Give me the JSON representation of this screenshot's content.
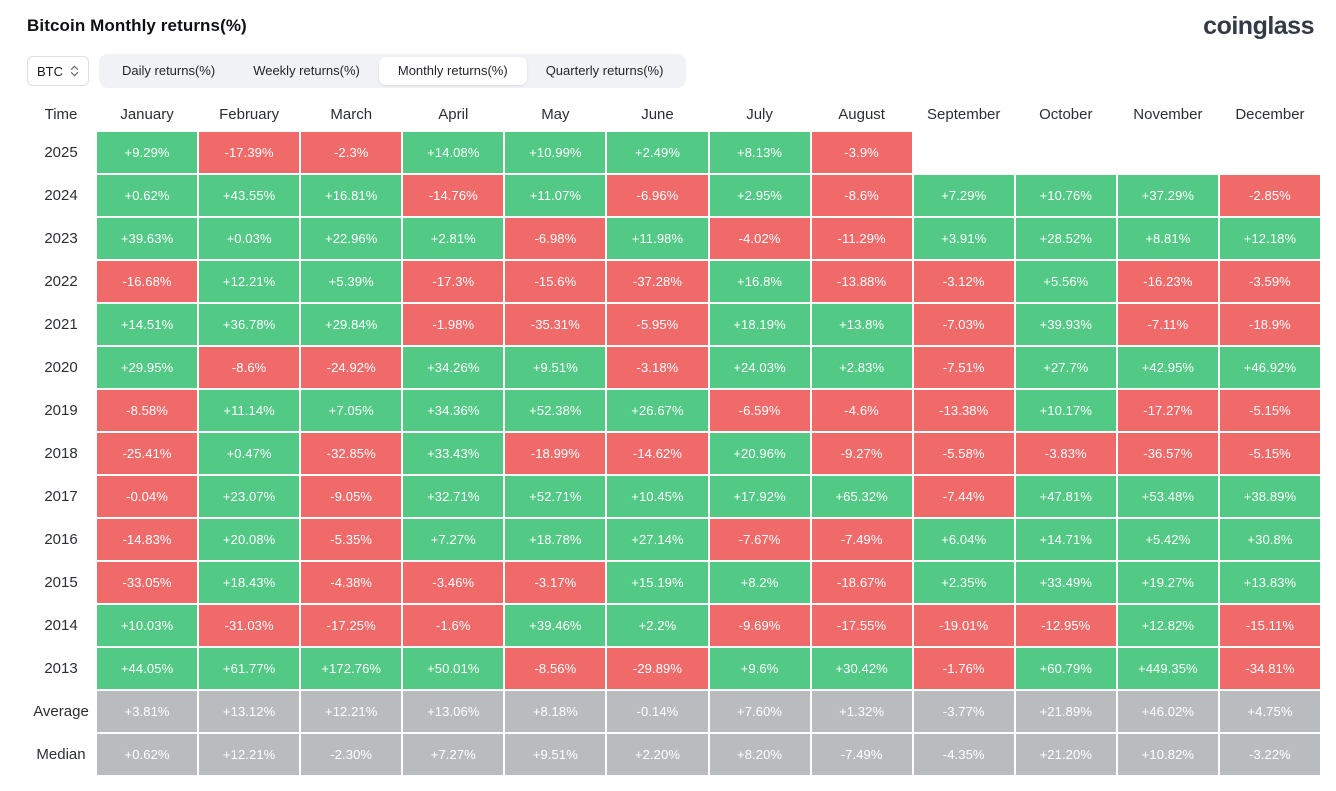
{
  "header": {
    "title": "Bitcoin Monthly returns(%)",
    "logo_text": "coinglass"
  },
  "controls": {
    "symbol": "BTC",
    "tabs": [
      {
        "label": "Daily returns(%)",
        "active": false
      },
      {
        "label": "Weekly returns(%)",
        "active": false
      },
      {
        "label": "Monthly returns(%)",
        "active": true
      },
      {
        "label": "Quarterly returns(%)",
        "active": false
      }
    ]
  },
  "colors": {
    "positive": "#52ca85",
    "negative": "#f06a6a",
    "summary": "#b9bcbf"
  },
  "chart_data": {
    "type": "heatmap",
    "title": "Bitcoin Monthly returns(%)",
    "columns": [
      "Time",
      "January",
      "February",
      "March",
      "April",
      "May",
      "June",
      "July",
      "August",
      "September",
      "October",
      "November",
      "December"
    ],
    "rows": [
      {
        "label": "2025",
        "summary": false,
        "values": [
          "+9.29%",
          "-17.39%",
          "-2.3%",
          "+14.08%",
          "+10.99%",
          "+2.49%",
          "+8.13%",
          "-3.9%",
          "",
          "",
          "",
          ""
        ]
      },
      {
        "label": "2024",
        "summary": false,
        "values": [
          "+0.62%",
          "+43.55%",
          "+16.81%",
          "-14.76%",
          "+11.07%",
          "-6.96%",
          "+2.95%",
          "-8.6%",
          "+7.29%",
          "+10.76%",
          "+37.29%",
          "-2.85%"
        ]
      },
      {
        "label": "2023",
        "summary": false,
        "values": [
          "+39.63%",
          "+0.03%",
          "+22.96%",
          "+2.81%",
          "-6.98%",
          "+11.98%",
          "-4.02%",
          "-11.29%",
          "+3.91%",
          "+28.52%",
          "+8.81%",
          "+12.18%"
        ]
      },
      {
        "label": "2022",
        "summary": false,
        "values": [
          "-16.68%",
          "+12.21%",
          "+5.39%",
          "-17.3%",
          "-15.6%",
          "-37.28%",
          "+16.8%",
          "-13.88%",
          "-3.12%",
          "+5.56%",
          "-16.23%",
          "-3.59%"
        ]
      },
      {
        "label": "2021",
        "summary": false,
        "values": [
          "+14.51%",
          "+36.78%",
          "+29.84%",
          "-1.98%",
          "-35.31%",
          "-5.95%",
          "+18.19%",
          "+13.8%",
          "-7.03%",
          "+39.93%",
          "-7.11%",
          "-18.9%"
        ]
      },
      {
        "label": "2020",
        "summary": false,
        "values": [
          "+29.95%",
          "-8.6%",
          "-24.92%",
          "+34.26%",
          "+9.51%",
          "-3.18%",
          "+24.03%",
          "+2.83%",
          "-7.51%",
          "+27.7%",
          "+42.95%",
          "+46.92%"
        ]
      },
      {
        "label": "2019",
        "summary": false,
        "values": [
          "-8.58%",
          "+11.14%",
          "+7.05%",
          "+34.36%",
          "+52.38%",
          "+26.67%",
          "-6.59%",
          "-4.6%",
          "-13.38%",
          "+10.17%",
          "-17.27%",
          "-5.15%"
        ]
      },
      {
        "label": "2018",
        "summary": false,
        "values": [
          "-25.41%",
          "+0.47%",
          "-32.85%",
          "+33.43%",
          "-18.99%",
          "-14.62%",
          "+20.96%",
          "-9.27%",
          "-5.58%",
          "-3.83%",
          "-36.57%",
          "-5.15%"
        ]
      },
      {
        "label": "2017",
        "summary": false,
        "values": [
          "-0.04%",
          "+23.07%",
          "-9.05%",
          "+32.71%",
          "+52.71%",
          "+10.45%",
          "+17.92%",
          "+65.32%",
          "-7.44%",
          "+47.81%",
          "+53.48%",
          "+38.89%"
        ]
      },
      {
        "label": "2016",
        "summary": false,
        "values": [
          "-14.83%",
          "+20.08%",
          "-5.35%",
          "+7.27%",
          "+18.78%",
          "+27.14%",
          "-7.67%",
          "-7.49%",
          "+6.04%",
          "+14.71%",
          "+5.42%",
          "+30.8%"
        ]
      },
      {
        "label": "2015",
        "summary": false,
        "values": [
          "-33.05%",
          "+18.43%",
          "-4.38%",
          "-3.46%",
          "-3.17%",
          "+15.19%",
          "+8.2%",
          "-18.67%",
          "+2.35%",
          "+33.49%",
          "+19.27%",
          "+13.83%"
        ]
      },
      {
        "label": "2014",
        "summary": false,
        "values": [
          "+10.03%",
          "-31.03%",
          "-17.25%",
          "-1.6%",
          "+39.46%",
          "+2.2%",
          "-9.69%",
          "-17.55%",
          "-19.01%",
          "-12.95%",
          "+12.82%",
          "-15.11%"
        ]
      },
      {
        "label": "2013",
        "summary": false,
        "values": [
          "+44.05%",
          "+61.77%",
          "+172.76%",
          "+50.01%",
          "-8.56%",
          "-29.89%",
          "+9.6%",
          "+30.42%",
          "-1.76%",
          "+60.79%",
          "+449.35%",
          "-34.81%"
        ]
      },
      {
        "label": "Average",
        "summary": true,
        "values": [
          "+3.81%",
          "+13.12%",
          "+12.21%",
          "+13.06%",
          "+8.18%",
          "-0.14%",
          "+7.60%",
          "+1.32%",
          "-3.77%",
          "+21.89%",
          "+46.02%",
          "+4.75%"
        ]
      },
      {
        "label": "Median",
        "summary": true,
        "values": [
          "+0.62%",
          "+12.21%",
          "-2.30%",
          "+7.27%",
          "+9.51%",
          "+2.20%",
          "+8.20%",
          "-7.49%",
          "-4.35%",
          "+21.20%",
          "+10.82%",
          "-3.22%"
        ]
      }
    ]
  }
}
